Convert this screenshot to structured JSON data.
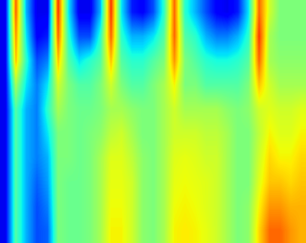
{
  "chart_data": {
    "type": "heatmap",
    "color": "jet",
    "tick_labels": false,
    "vlim": [
      0,
      1
    ],
    "cells": [
      [
        0.1,
        0.8,
        0.3,
        0.1,
        0.1,
        0.85,
        0.35,
        0.1,
        0.1,
        0.3,
        0.85,
        0.35,
        0.15,
        0.12,
        0.2,
        0.4,
        0.8,
        0.4,
        0.3,
        0.2,
        0.12,
        0.1,
        0.15,
        0.35,
        0.8,
        0.6,
        0.5,
        0.5,
        0.5
      ],
      [
        0.1,
        0.75,
        0.35,
        0.12,
        0.15,
        0.8,
        0.4,
        0.2,
        0.2,
        0.4,
        0.8,
        0.4,
        0.3,
        0.3,
        0.35,
        0.45,
        0.8,
        0.45,
        0.4,
        0.3,
        0.25,
        0.25,
        0.3,
        0.4,
        0.85,
        0.55,
        0.5,
        0.5,
        0.5
      ],
      [
        0.1,
        0.7,
        0.4,
        0.2,
        0.25,
        0.7,
        0.45,
        0.35,
        0.4,
        0.45,
        0.7,
        0.45,
        0.4,
        0.4,
        0.45,
        0.5,
        0.75,
        0.5,
        0.45,
        0.4,
        0.38,
        0.38,
        0.4,
        0.45,
        0.8,
        0.55,
        0.52,
        0.52,
        0.52
      ],
      [
        0.1,
        0.55,
        0.35,
        0.25,
        0.35,
        0.6,
        0.5,
        0.45,
        0.45,
        0.5,
        0.6,
        0.5,
        0.45,
        0.45,
        0.5,
        0.55,
        0.65,
        0.5,
        0.5,
        0.45,
        0.45,
        0.45,
        0.45,
        0.5,
        0.7,
        0.6,
        0.55,
        0.55,
        0.55
      ],
      [
        0.1,
        0.45,
        0.3,
        0.25,
        0.4,
        0.55,
        0.5,
        0.48,
        0.48,
        0.5,
        0.55,
        0.55,
        0.52,
        0.5,
        0.5,
        0.55,
        0.6,
        0.55,
        0.55,
        0.55,
        0.55,
        0.52,
        0.5,
        0.52,
        0.6,
        0.62,
        0.6,
        0.6,
        0.62
      ],
      [
        0.1,
        0.45,
        0.3,
        0.25,
        0.35,
        0.5,
        0.5,
        0.48,
        0.5,
        0.52,
        0.58,
        0.6,
        0.55,
        0.5,
        0.5,
        0.55,
        0.6,
        0.6,
        0.6,
        0.58,
        0.58,
        0.55,
        0.5,
        0.5,
        0.58,
        0.65,
        0.62,
        0.62,
        0.65
      ],
      [
        0.1,
        0.45,
        0.3,
        0.25,
        0.3,
        0.5,
        0.5,
        0.48,
        0.5,
        0.55,
        0.62,
        0.62,
        0.58,
        0.52,
        0.5,
        0.55,
        0.62,
        0.63,
        0.62,
        0.6,
        0.6,
        0.55,
        0.5,
        0.5,
        0.6,
        0.68,
        0.65,
        0.65,
        0.68
      ],
      [
        0.1,
        0.45,
        0.3,
        0.22,
        0.28,
        0.5,
        0.48,
        0.48,
        0.5,
        0.55,
        0.63,
        0.63,
        0.6,
        0.52,
        0.5,
        0.55,
        0.63,
        0.64,
        0.63,
        0.62,
        0.6,
        0.55,
        0.5,
        0.5,
        0.62,
        0.7,
        0.7,
        0.68,
        0.7
      ],
      [
        0.1,
        0.45,
        0.3,
        0.2,
        0.25,
        0.5,
        0.48,
        0.48,
        0.5,
        0.55,
        0.64,
        0.64,
        0.6,
        0.52,
        0.5,
        0.55,
        0.64,
        0.65,
        0.64,
        0.62,
        0.6,
        0.55,
        0.5,
        0.52,
        0.65,
        0.75,
        0.75,
        0.72,
        0.72
      ],
      [
        0.1,
        0.45,
        0.3,
        0.2,
        0.22,
        0.5,
        0.48,
        0.48,
        0.5,
        0.55,
        0.65,
        0.65,
        0.6,
        0.52,
        0.5,
        0.55,
        0.65,
        0.66,
        0.65,
        0.63,
        0.6,
        0.55,
        0.5,
        0.52,
        0.68,
        0.8,
        0.8,
        0.75,
        0.72
      ]
    ]
  }
}
